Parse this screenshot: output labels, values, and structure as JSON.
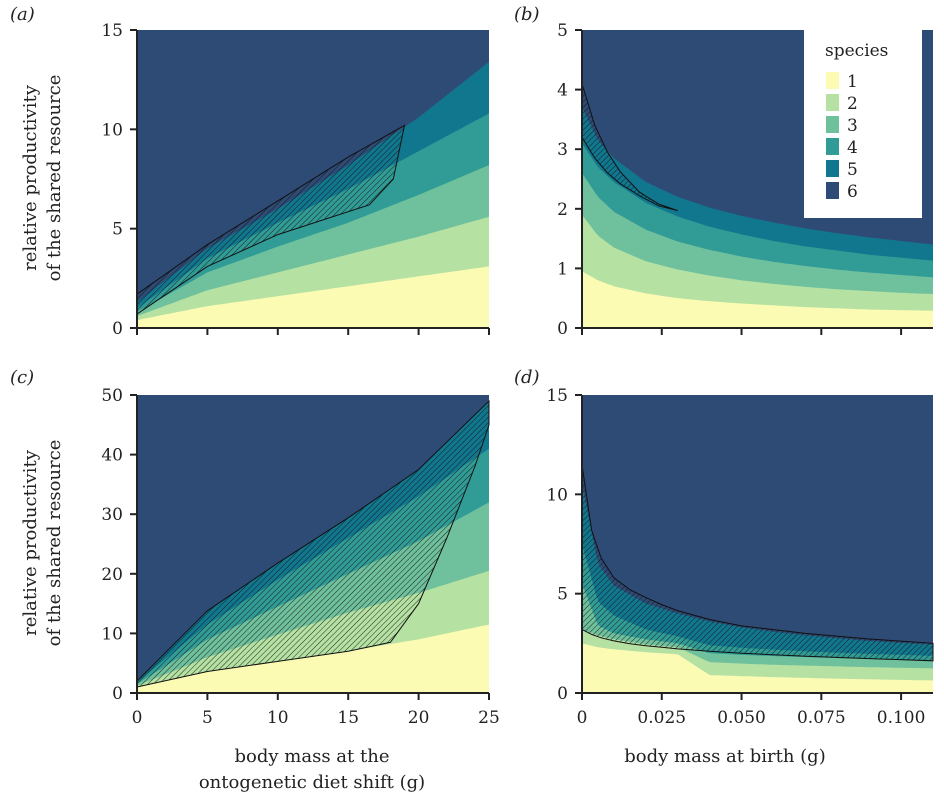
{
  "palette": {
    "1": "#fbfbb4",
    "2": "#b5e1a2",
    "3": "#6fc09c",
    "4": "#319b96",
    "5": "#11778e",
    "6": "#2e4b76"
  },
  "legend": {
    "title": "species",
    "labels": [
      "1",
      "2",
      "3",
      "4",
      "5",
      "6"
    ]
  },
  "y_label_lines": [
    "relative productivity",
    "of the shared resource"
  ],
  "x_label_left_lines": [
    "body mass at the",
    "ontogenetic diet shift (g)"
  ],
  "x_label_right": "body mass at birth (g)",
  "chart_data": [
    {
      "panel": "(a)",
      "type": "area",
      "xlabel": "",
      "ylabel": "relative productivity of the shared resource",
      "xlim": [
        0,
        25
      ],
      "ylim": [
        0,
        15
      ],
      "xticks": [
        0,
        5,
        10,
        15,
        20,
        25
      ],
      "xtick_labels": [],
      "yticks": [
        0,
        5,
        10,
        15
      ],
      "x": [
        0,
        5,
        10,
        15,
        20,
        25
      ],
      "series": [
        {
          "name": "1",
          "upper": [
            0.4,
            1.1,
            1.6,
            2.1,
            2.6,
            3.1
          ]
        },
        {
          "name": "2",
          "upper": [
            0.6,
            1.9,
            2.8,
            3.7,
            4.6,
            5.6
          ]
        },
        {
          "name": "3",
          "upper": [
            0.8,
            2.8,
            4.1,
            5.3,
            6.7,
            8.2
          ]
        },
        {
          "name": "4",
          "upper": [
            1.0,
            3.5,
            5.3,
            7.0,
            8.9,
            10.8
          ]
        },
        {
          "name": "5",
          "upper": [
            1.3,
            4.0,
            6.0,
            8.2,
            10.6,
            13.4
          ]
        },
        {
          "name": "6",
          "upper": [
            15,
            15,
            15,
            15,
            15,
            15
          ]
        }
      ],
      "hatched_region": {
        "upper": {
          "x": [
            0,
            5,
            10,
            15,
            19
          ],
          "y": [
            1.7,
            4.2,
            6.4,
            8.6,
            10.2
          ]
        },
        "lower": {
          "x": [
            0,
            5,
            10,
            16.5,
            18.2,
            19
          ],
          "y": [
            0.7,
            3.1,
            4.7,
            6.2,
            7.5,
            10.2
          ]
        }
      }
    },
    {
      "panel": "(b)",
      "type": "area",
      "xlabel": "",
      "ylabel": "",
      "xlim": [
        0,
        0.11
      ],
      "ylim": [
        0,
        5
      ],
      "xticks": [
        0,
        0.025,
        0.05,
        0.075,
        0.1
      ],
      "xtick_labels": [],
      "yticks": [
        0,
        1,
        2,
        3,
        4,
        5
      ],
      "x": [
        0,
        0.005,
        0.01,
        0.02,
        0.03,
        0.04,
        0.05,
        0.06,
        0.07,
        0.08,
        0.09,
        0.1,
        0.11
      ],
      "series": [
        {
          "name": "1",
          "upper": [
            0.95,
            0.8,
            0.7,
            0.58,
            0.5,
            0.45,
            0.41,
            0.38,
            0.35,
            0.33,
            0.31,
            0.3,
            0.29
          ]
        },
        {
          "name": "2",
          "upper": [
            1.9,
            1.55,
            1.35,
            1.12,
            0.98,
            0.88,
            0.8,
            0.74,
            0.69,
            0.65,
            0.62,
            0.59,
            0.57
          ]
        },
        {
          "name": "3",
          "upper": [
            2.6,
            2.2,
            1.95,
            1.65,
            1.45,
            1.31,
            1.2,
            1.11,
            1.04,
            0.98,
            0.93,
            0.89,
            0.85
          ]
        },
        {
          "name": "4",
          "upper": [
            3.1,
            2.7,
            2.45,
            2.1,
            1.87,
            1.7,
            1.57,
            1.46,
            1.37,
            1.3,
            1.23,
            1.18,
            1.13
          ]
        },
        {
          "name": "5",
          "upper": [
            3.7,
            3.15,
            2.85,
            2.45,
            2.2,
            2.02,
            1.88,
            1.77,
            1.67,
            1.59,
            1.52,
            1.46,
            1.4
          ]
        },
        {
          "name": "6",
          "upper": [
            5,
            5,
            5,
            5,
            5,
            5,
            5,
            5,
            5,
            5,
            5,
            5,
            5
          ]
        }
      ],
      "hatched_region": {
        "upper": {
          "x": [
            0,
            0.004,
            0.008,
            0.012,
            0.018,
            0.024,
            0.03
          ],
          "y": [
            4.1,
            3.4,
            2.95,
            2.62,
            2.28,
            2.08,
            1.97
          ]
        },
        "lower": {
          "x": [
            0,
            0.004,
            0.008,
            0.012,
            0.018,
            0.024,
            0.03
          ],
          "y": [
            3.2,
            2.85,
            2.6,
            2.42,
            2.22,
            2.05,
            1.97
          ]
        }
      }
    },
    {
      "panel": "(c)",
      "type": "area",
      "xlabel": "body mass at the ontogenetic diet shift (g)",
      "ylabel": "relative productivity of the shared resource",
      "xlim": [
        0,
        25
      ],
      "ylim": [
        0,
        50
      ],
      "xticks": [
        0,
        5,
        10,
        15,
        20,
        25
      ],
      "yticks": [
        0,
        10,
        20,
        30,
        40,
        50
      ],
      "x": [
        0,
        5,
        10,
        15,
        20,
        25
      ],
      "series": [
        {
          "name": "1",
          "upper": [
            1.0,
            3.6,
            5.3,
            7.0,
            9.0,
            11.5
          ]
        },
        {
          "name": "2",
          "upper": [
            1.2,
            6.0,
            9.8,
            13.5,
            16.8,
            20.5
          ]
        },
        {
          "name": "3",
          "upper": [
            1.5,
            9.0,
            14.5,
            20.0,
            25.5,
            32.0
          ]
        },
        {
          "name": "4",
          "upper": [
            1.8,
            11.5,
            19.0,
            26.0,
            33.0,
            41.0
          ]
        },
        {
          "name": "5",
          "upper": [
            2.0,
            13.8,
            21.8,
            29.4,
            37.5,
            49.0
          ]
        },
        {
          "name": "6",
          "upper": [
            50,
            50,
            50,
            50,
            50,
            50
          ]
        }
      ],
      "hatched_region": {
        "upper": {
          "x": [
            0,
            5,
            10,
            15,
            20,
            25
          ],
          "y": [
            2.0,
            13.8,
            21.8,
            29.4,
            37.5,
            49.0
          ]
        },
        "lower": {
          "x": [
            0,
            5,
            10,
            15,
            18,
            20,
            22,
            24,
            25
          ],
          "y": [
            1.0,
            3.6,
            5.3,
            7.0,
            8.5,
            15.0,
            26.0,
            38.0,
            45.0
          ]
        }
      }
    },
    {
      "panel": "(d)",
      "type": "area",
      "xlabel": "body mass at birth (g)",
      "ylabel": "",
      "xlim": [
        0,
        0.11
      ],
      "ylim": [
        0,
        15
      ],
      "xticks": [
        0,
        0.025,
        0.05,
        0.075,
        0.1
      ],
      "xtick_labels": [
        "0",
        "0.025",
        "0.050",
        "0.075",
        "0.100"
      ],
      "yticks": [
        0,
        5,
        10,
        15
      ],
      "x": [
        0,
        0.005,
        0.01,
        0.02,
        0.03,
        0.04,
        0.05,
        0.06,
        0.07,
        0.08,
        0.09,
        0.1,
        0.11
      ],
      "series": [
        {
          "name": "1",
          "upper": [
            2.5,
            2.3,
            2.2,
            2.05,
            1.95,
            0.9,
            0.85,
            0.8,
            0.76,
            0.72,
            0.69,
            0.66,
            0.63
          ]
        },
        {
          "name": "2",
          "upper": [
            3.2,
            2.9,
            2.7,
            2.45,
            2.3,
            1.55,
            1.48,
            1.42,
            1.38,
            1.34,
            1.3,
            1.27,
            1.24
          ]
        },
        {
          "name": "3",
          "upper": [
            5.5,
            3.4,
            3.0,
            2.7,
            2.5,
            2.0,
            1.92,
            1.86,
            1.81,
            1.76,
            1.72,
            1.68,
            1.64
          ]
        },
        {
          "name": "4",
          "upper": [
            7.5,
            4.6,
            3.9,
            3.2,
            2.85,
            2.4,
            2.28,
            2.18,
            2.1,
            2.03,
            1.97,
            1.92,
            1.87
          ]
        },
        {
          "name": "5",
          "upper": [
            10.5,
            6.5,
            5.4,
            4.5,
            4.0,
            3.6,
            3.3,
            3.08,
            2.9,
            2.75,
            2.62,
            2.52,
            2.43
          ]
        },
        {
          "name": "6",
          "upper": [
            15,
            15,
            15,
            15,
            15,
            15,
            15,
            15,
            15,
            15,
            15,
            15,
            15
          ]
        }
      ],
      "hatched_region": {
        "upper": {
          "x": [
            0,
            0.003,
            0.006,
            0.01,
            0.015,
            0.02,
            0.025,
            0.03,
            0.04,
            0.05,
            0.07,
            0.09,
            0.11
          ],
          "y": [
            11.5,
            8.2,
            6.8,
            5.8,
            5.2,
            4.8,
            4.45,
            4.15,
            3.7,
            3.38,
            3.0,
            2.72,
            2.5
          ]
        },
        "lower": {
          "x": [
            0,
            0.003,
            0.006,
            0.01,
            0.015,
            0.02,
            0.025,
            0.03,
            0.04,
            0.05,
            0.07,
            0.09,
            0.11
          ],
          "y": [
            3.2,
            2.95,
            2.78,
            2.62,
            2.48,
            2.38,
            2.3,
            2.22,
            2.1,
            2.0,
            1.85,
            1.73,
            1.62
          ]
        }
      }
    }
  ]
}
